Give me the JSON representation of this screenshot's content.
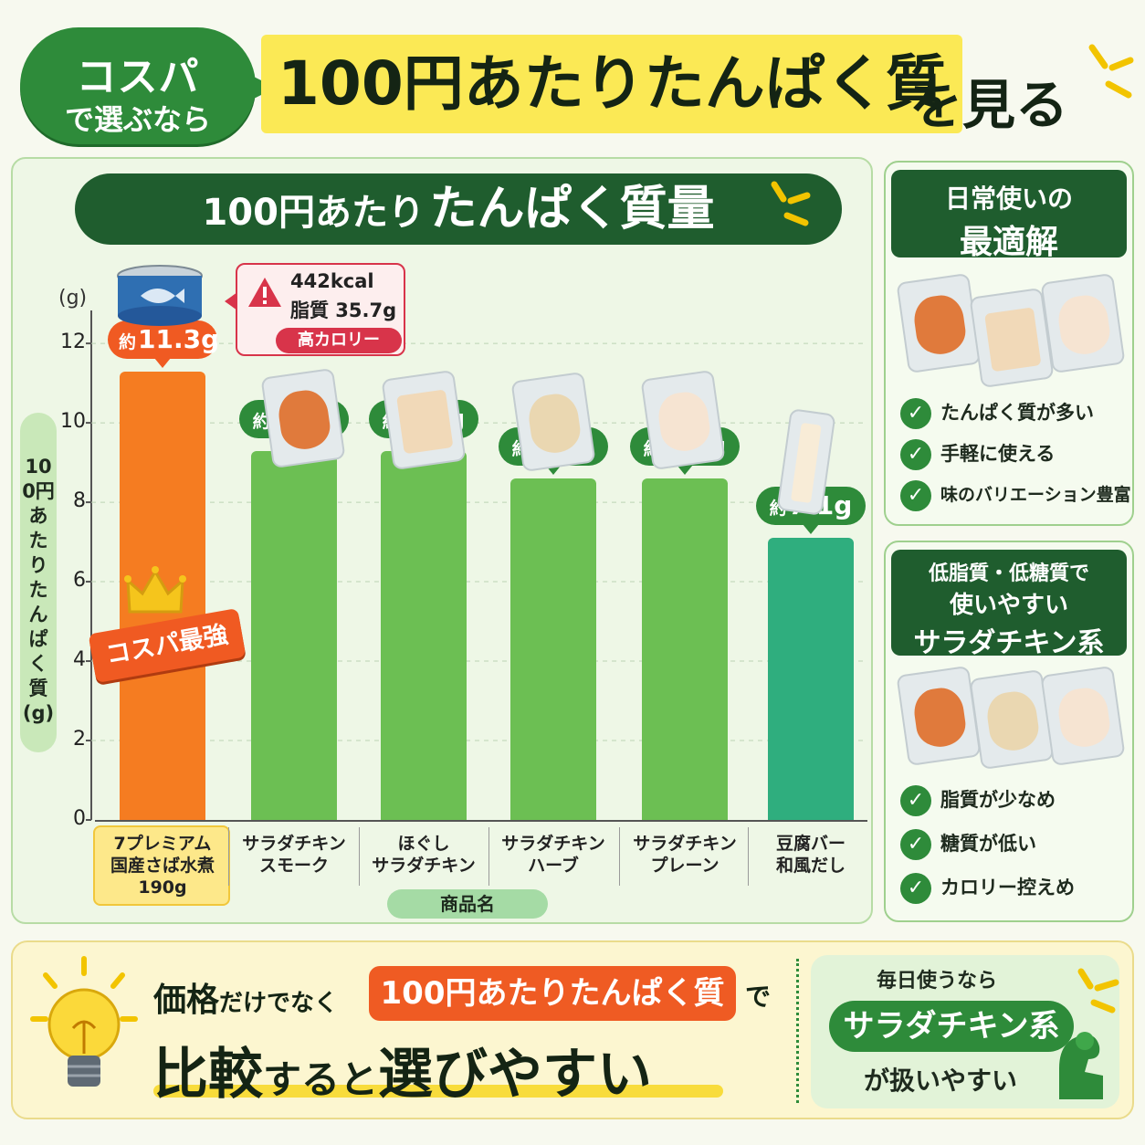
{
  "header": {
    "bubble_line1": "コスパ",
    "bubble_line2": "で選ぶなら",
    "title": "100円あたりたんぱく質",
    "suffix": "を見る"
  },
  "chart_data": {
    "type": "bar",
    "title_part1": "100円あたり",
    "title_part2": "たんぱく質量",
    "unit": "(g)",
    "ylabel": "100円あたりたんぱく質(g)",
    "xlabel": "商品名",
    "ylim": [
      0,
      12.6
    ],
    "yticks": [
      0,
      2,
      4,
      6,
      8,
      10,
      12
    ],
    "grid": true,
    "categories": [
      "7プレミアム\n国産さば水煮\n190g",
      "サラダチキン\nスモーク",
      "ほぐし\nサラダチキン",
      "サラダチキン\nハーブ",
      "サラダチキン\nプレーン",
      "豆腐バー\n和風だし"
    ],
    "values": [
      11.3,
      9.3,
      9.3,
      8.6,
      8.6,
      7.1
    ],
    "value_prefix": "約",
    "value_labels": [
      "11.3g",
      "9.3g",
      "9.3g",
      "8.6g",
      "8.6g",
      "7.1g"
    ],
    "bar_colors": [
      "#f57c21",
      "#6cbf53",
      "#6cbf53",
      "#6cbf53",
      "#6cbf53",
      "#2fae7e"
    ],
    "label_colors": [
      "#f05a22",
      "#2e8b3a",
      "#2e8b3a",
      "#2e8b3a",
      "#2e8b3a",
      "#2e8b3a"
    ],
    "annotation": {
      "kcal": "442kcal",
      "fat": "脂質 35.7g",
      "badge": "高カロリー"
    },
    "best_badge": "コスパ最強"
  },
  "side_top": {
    "heading_l1": "日常使いの",
    "heading_l2": "最適解",
    "checks": [
      "たんぱく質が多い",
      "手軽に使える",
      "味のバリエーション豊富"
    ]
  },
  "side_bottom": {
    "heading_l1": "低脂質・低糖質で",
    "heading_l2": "使いやすい",
    "heading_l3": "サラダチキン系",
    "checks": [
      "脂質が少なめ",
      "糖質が低い",
      "カロリー控えめ"
    ]
  },
  "banner": {
    "l1_a": "価格",
    "l1_b": "だけでなく",
    "pill": "100円あたりたんぱく質",
    "l1_c": "で",
    "l2_a": "比較",
    "l2_b": "すると",
    "l2_c": "選びやすい",
    "right_l1": "毎日使うなら",
    "right_l2": "サラダチキン系",
    "right_l3": "が扱いやすい"
  },
  "colors": {
    "dark_green": "#1f5d2e",
    "green": "#2e8b3a",
    "orange": "#f05a22",
    "yellow": "#fbe955",
    "red": "#d8344a"
  }
}
